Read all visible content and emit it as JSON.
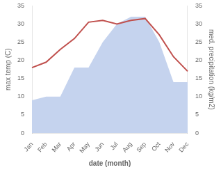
{
  "chart_data": {
    "type": "line",
    "categories": [
      "Jan",
      "Feb",
      "Mar",
      "Apr",
      "May",
      "Jun",
      "Jul",
      "Aug",
      "Sep",
      "Oct",
      "Nov",
      "Dec"
    ],
    "xlabel": "date (month)",
    "ylabel": "max temp (C)",
    "y2label": "med. precipitation (kg/m2)",
    "series": [
      {
        "type": "area",
        "axis": "y2",
        "color": "#c5d3ee",
        "values": [
          9,
          10,
          10,
          18,
          18,
          25,
          30,
          32,
          32,
          25,
          14,
          14
        ]
      },
      {
        "type": "line",
        "color": "#c0504d",
        "values": [
          18,
          19.5,
          23,
          26,
          30.5,
          31,
          30,
          31,
          31.5,
          27,
          21,
          17
        ]
      }
    ],
    "ylim": [
      0,
      35
    ],
    "yticks": [
      0,
      5,
      10,
      15,
      20,
      25,
      30,
      35
    ],
    "y2lim": [
      0,
      35
    ],
    "y2ticks": [
      0,
      5,
      10,
      15,
      20,
      25,
      30,
      35
    ],
    "grid": false
  }
}
